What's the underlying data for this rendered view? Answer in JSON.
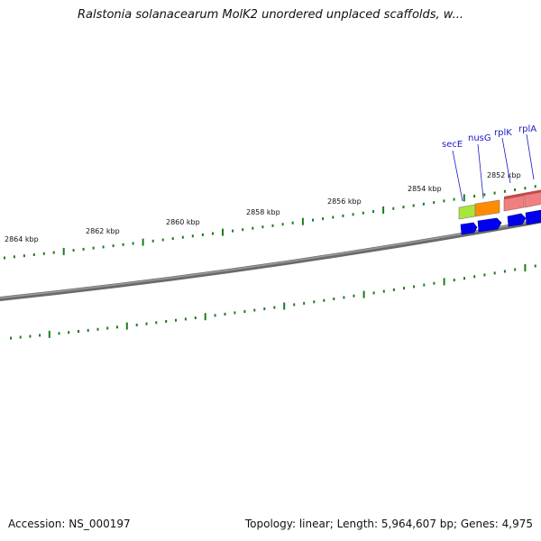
{
  "title": "Ralstonia solanacearum MolK2 unordered unplaced scaffolds, w...",
  "footer": {
    "accession": "Accession: NS_000197",
    "summary": "Topology: linear; Length: 5,964,607 bp; Genes: 4,975"
  },
  "ruler_labels": [
    "2864 kbp",
    "2862 kbp",
    "2860 kbp",
    "2858 kbp",
    "2856 kbp",
    "2854 kbp",
    "2852 kbp"
  ],
  "genes": [
    {
      "name": "secE",
      "color": "#a8e63c"
    },
    {
      "name": "nusG",
      "color": "#ff8c00"
    },
    {
      "name": "rplK",
      "color": "#f08080"
    },
    {
      "name": "rplA",
      "color": "#f08080"
    }
  ],
  "colors": {
    "backbone": "#808080",
    "tick": "#1e7a1e",
    "cds_arrow": "#0000ee",
    "label": "#1a1ac8"
  }
}
